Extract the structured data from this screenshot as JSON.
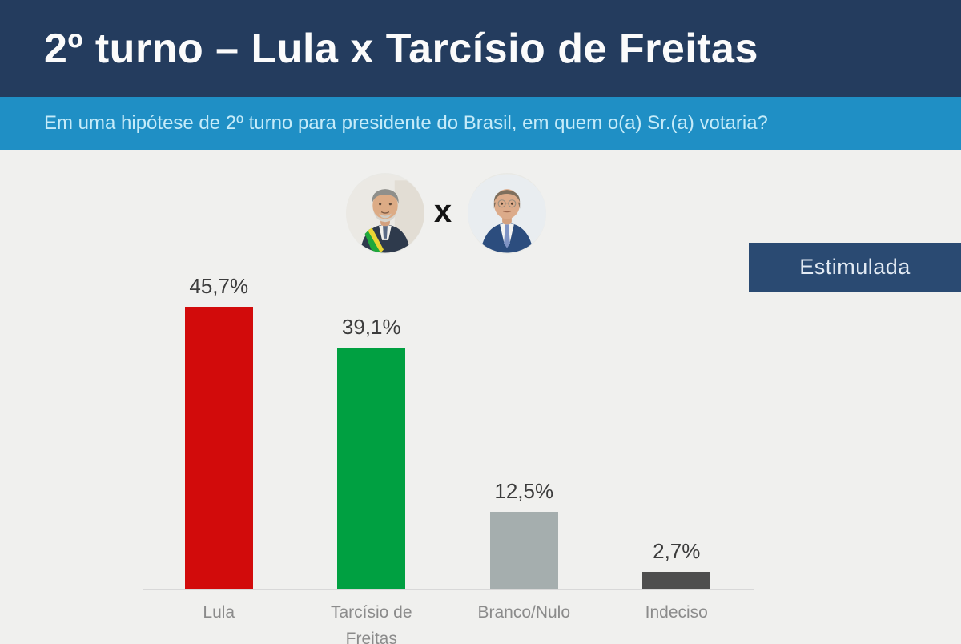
{
  "header": {
    "title": "2º turno – Lula x Tarcísio de Freitas",
    "bg_color": "#243c5e"
  },
  "question_bar": {
    "text": "Em uma hipótese de 2º turno para presidente do Brasil, em quem o(a) Sr.(a) votaria?",
    "bg_color": "#1f8fc5"
  },
  "matchup": {
    "left_candidate": "Lula",
    "separator": "x",
    "right_candidate": "Tarcísio de Freitas"
  },
  "badge": {
    "label": "Estimulada",
    "bg_color": "#2a4a72"
  },
  "chart_data": {
    "type": "bar",
    "title": "2º turno – Lula x Tarcísio de Freitas",
    "categories": [
      "Lula",
      "Tarcísio de Freitas",
      "Branco/Nulo",
      "Indeciso"
    ],
    "values": [
      45.7,
      39.1,
      12.5,
      2.7
    ],
    "value_labels": [
      "45,7%",
      "39,1%",
      "12,5%",
      "2,7%"
    ],
    "bar_colors": [
      "#d20b0b",
      "#00a041",
      "#a5aeae",
      "#4e4e4e"
    ],
    "xlabel": "",
    "ylabel": "",
    "ylim": [
      0,
      50
    ],
    "grid": false,
    "legend": false,
    "value_label_color": "#3c3c3c",
    "category_label_color": "#8b8b8b",
    "axis_line_color": "#d8d8d8"
  }
}
